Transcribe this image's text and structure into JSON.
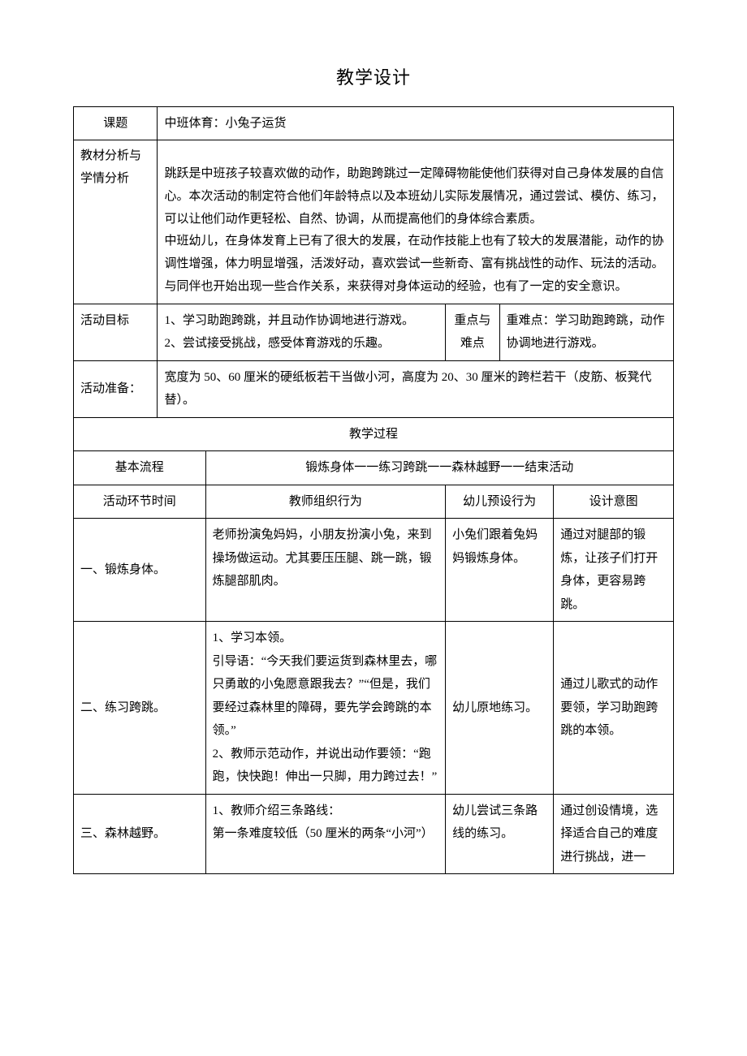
{
  "doc_title": "教学设计",
  "labels": {
    "topic": "课题",
    "analysis": "教材分析与学情分析",
    "objective": "活动目标",
    "key_diff": "重点与难点",
    "prep": "活动准备：",
    "tproc": "教学过程",
    "basic_flow": "基本流程",
    "phase_time": "活动环节时间",
    "col_teacher": "教师组织行为",
    "col_child": "幼儿预设行为",
    "col_intent": "设计意图"
  },
  "topic_value": "中班体育：小兔子运货",
  "analysis_text": "跳跃是中班孩子较喜欢做的动作，助跑跨跳过一定障碍物能使他们获得对自己身体发展的自信心。本次活动的制定符合他们年龄特点以及本班幼儿实际发展情况，通过尝试、模仿、练习，可以让他们动作更轻松、自然、协调，从而提高他们的身体综合素质。\n中班幼儿，在身体发育上已有了很大的发展，在动作技能上也有了较大的发展潜能，动作的协调性增强，体力明显增强，活泼好动，喜欢尝试一些新奇、富有挑战性的动作、玩法的活动。与同伴也开始出现一些合作关系，来获得对身体运动的经验，也有了一定的安全意识。",
  "objective_text": "1、学习助跑跨跳，并且动作协调地进行游戏。\n2、尝试接受挑战，感受体育游戏的乐趣。",
  "key_diff_text": "重难点：学习助跑跨跳，动作协调地进行游戏。",
  "prep_text": "宽度为 50、60 厘米的硬纸板若干当做小河，高度为 20、30 厘米的跨栏若干（皮筋、板凳代替）。",
  "basic_flow_text": "锻炼身体一一练习跨跳一一森林越野一一结束活动",
  "row1": {
    "phase": "一、锻炼身体。",
    "teacher": "老师扮演兔妈妈，小朋友扮演小兔，来到操场做运动。尤其要压压腿、跳一跳，锻炼腿部肌肉。",
    "child": "小兔们跟着兔妈妈锻炼身体。",
    "intent": "通过对腿部的锻炼，让孩子们打开身体，更容易跨跳。"
  },
  "row2": {
    "phase": "二、练习跨跳。",
    "teacher": "1、学习本领。\n引导语：“今天我们要运货到森林里去，哪只勇敢的小兔愿意跟我去？”“但是，我们要经过森林里的障碍，要先学会跨跳的本领。”\n2、教师示范动作，并说出动作要领：“跑跑，快快跑！伸出一只脚，用力跨过去！”",
    "child": "幼儿原地练习。",
    "intent": "通过儿歌式的动作要领，学习助跑跨跳的本领。"
  },
  "row3": {
    "phase": "三、森林越野。",
    "teacher": "1、教师介绍三条路线：\n第一条难度较低（50 厘米的两条“小河”）",
    "child": "幼儿尝试三条路线的练习。",
    "intent": "通过创设情境，选择适合自己的难度进行挑战，进一"
  },
  "colors": {
    "text": "#000000",
    "bg": "#ffffff",
    "border": "#000000"
  },
  "typography": {
    "body_fontsize": 16,
    "title_fontsize": 22,
    "font_family": "SimSun"
  }
}
